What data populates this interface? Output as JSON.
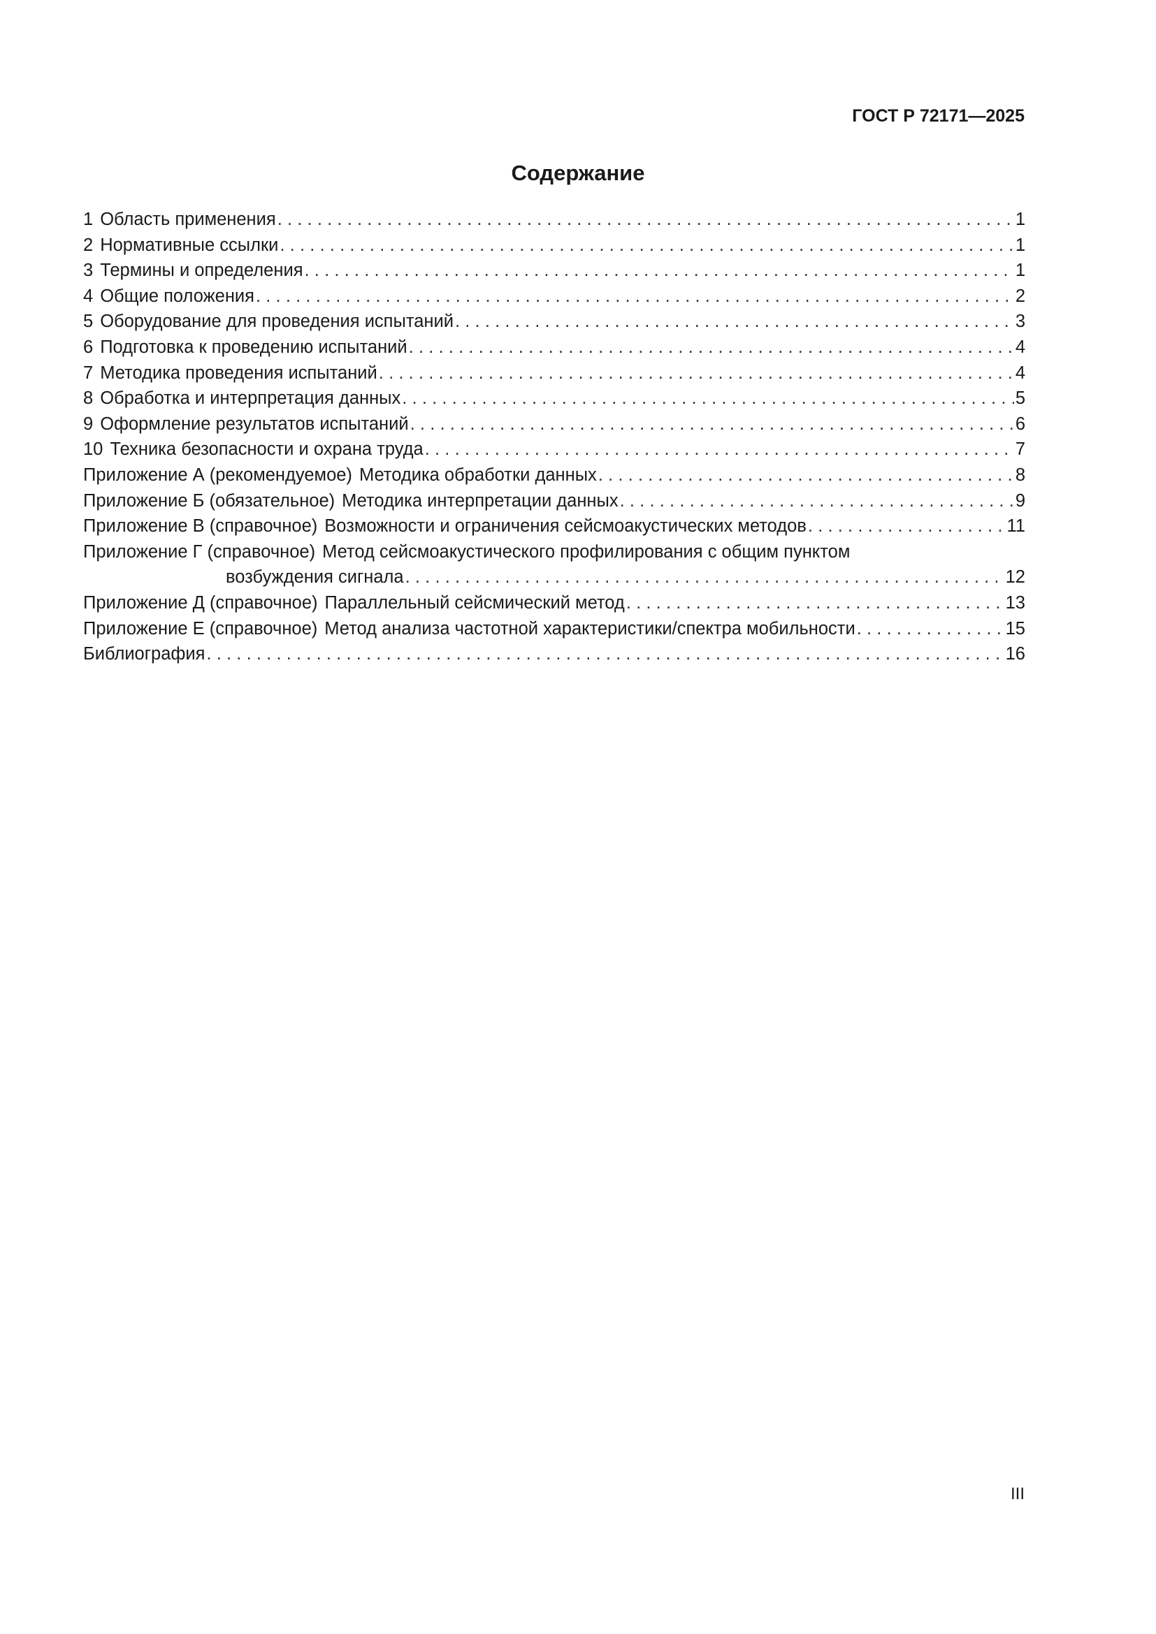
{
  "header": {
    "doc_code": "ГОСТ Р 72171—2025"
  },
  "toc": {
    "title": "Содержание",
    "entries": [
      {
        "num": "1",
        "text": "Область применения",
        "page": "1"
      },
      {
        "num": "2",
        "text": "Нормативные ссылки",
        "page": "1"
      },
      {
        "num": "3",
        "text": "Термины и определения",
        "page": "1"
      },
      {
        "num": "4",
        "text": "Общие положения",
        "page": "2"
      },
      {
        "num": "5",
        "text": "Оборудование для проведения испытаний",
        "page": "3"
      },
      {
        "num": "6",
        "text": "Подготовка к проведению испытаний",
        "page": "4"
      },
      {
        "num": "7",
        "text": "Методика проведения испытаний",
        "page": "4"
      },
      {
        "num": "8",
        "text": "Обработка и интерпретация данных",
        "page": "5"
      },
      {
        "num": "9",
        "text": "Оформление результатов испытаний",
        "page": "6"
      },
      {
        "num": "10",
        "text": "Техника безопасности и охрана труда",
        "page": "7"
      }
    ],
    "appendices": [
      {
        "label": "Приложение А (рекомендуемое)",
        "text": "Методика обработки данных",
        "page": "8"
      },
      {
        "label": "Приложение Б (обязательное)",
        "text": "Методика интерпретации данных",
        "page": "9"
      },
      {
        "label": "Приложение В (справочное)",
        "text": "Возможности и ограничения сейсмоакустических методов",
        "page": "11"
      },
      {
        "label": "Приложение Г (справочное)",
        "text": "Метод сейсмоакустического профилирования с общим пунктом",
        "text_cont": "возбуждения сигнала",
        "page": "12"
      },
      {
        "label": "Приложение Д (справочное)",
        "text": "Параллельный сейсмический метод",
        "page": "13"
      },
      {
        "label": "Приложение Е (справочное)",
        "text": "Метод анализа частотной характеристики/спектра мобильности",
        "page": "15"
      }
    ],
    "bibliography": {
      "text": "Библиография",
      "page": "16"
    }
  },
  "footer": {
    "page_number": "III"
  }
}
